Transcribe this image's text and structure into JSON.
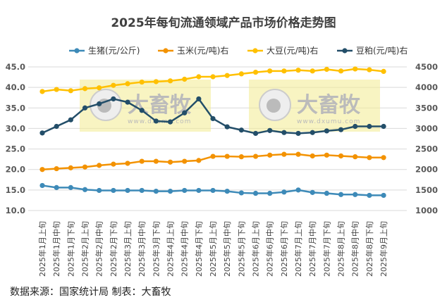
{
  "chart_data": {
    "type": "line",
    "title": "2025年每旬流通领域产品市场价格走势图",
    "categories": [
      "2025年1月上旬",
      "2025年1月中旬",
      "2025年1月下旬",
      "2025年2月上旬",
      "2025年2月中旬",
      "2025年2月下旬",
      "2025年3月上旬",
      "2025年3月中旬",
      "2025年3月下旬",
      "2025年4月上旬",
      "2025年4月中旬",
      "2025年4月下旬",
      "2025年5月上旬",
      "2025年5月中旬",
      "2025年5月下旬",
      "2025年6月上旬",
      "2025年6月中旬",
      "2025年6月下旬",
      "2025年7月上旬",
      "2025年7月中旬",
      "2025年7月下旬",
      "2025年8月上旬",
      "2025年8月中旬",
      "2025年8月下旬",
      "2025年9月上旬"
    ],
    "y_left": {
      "range": [
        10,
        45
      ],
      "ticks": [
        "10.0",
        "15.0",
        "20.0",
        "25.0",
        "30.0",
        "35.0",
        "40.0",
        "45.0"
      ]
    },
    "y_right": {
      "range": [
        1000,
        4500
      ],
      "ticks": [
        "1000",
        "1500",
        "2000",
        "2500",
        "3000",
        "3500",
        "4000",
        "4500"
      ]
    },
    "grid": true,
    "legend_position": "top",
    "series": [
      {
        "name": "生猪(元/公斤)",
        "axis": "left",
        "color": "#3d8ab8",
        "values": [
          16.1,
          15.6,
          15.6,
          15.1,
          14.9,
          14.9,
          14.9,
          14.9,
          14.7,
          14.7,
          14.9,
          14.9,
          14.9,
          14.7,
          14.3,
          14.2,
          14.2,
          14.5,
          15.0,
          14.4,
          14.2,
          13.9,
          13.9,
          13.7,
          13.7
        ]
      },
      {
        "name": "玉米(元/吨)右",
        "axis": "right",
        "color": "#f39200",
        "values": [
          2000,
          2020,
          2040,
          2060,
          2100,
          2130,
          2150,
          2200,
          2200,
          2180,
          2200,
          2220,
          2320,
          2320,
          2310,
          2320,
          2350,
          2370,
          2370,
          2330,
          2350,
          2330,
          2310,
          2290,
          2290
        ]
      },
      {
        "name": "大豆(元/吨)右",
        "axis": "right",
        "color": "#ffc000",
        "values": [
          3900,
          3950,
          3920,
          3970,
          3990,
          4050,
          4090,
          4130,
          4140,
          4160,
          4200,
          4260,
          4260,
          4290,
          4330,
          4370,
          4400,
          4400,
          4420,
          4400,
          4440,
          4400,
          4450,
          4430,
          4390
        ]
      },
      {
        "name": "豆粕(元/吨)右",
        "axis": "right",
        "color": "#234e69",
        "values": [
          2890,
          3050,
          3210,
          3500,
          3600,
          3720,
          3640,
          3440,
          3180,
          3160,
          3380,
          3720,
          3240,
          3040,
          2960,
          2880,
          2950,
          2900,
          2880,
          2900,
          2940,
          2970,
          3050,
          3050,
          3050
        ]
      }
    ]
  },
  "source": "数据来源：国家统计局  制表：大畜牧",
  "watermark": {
    "brand": "大畜牧",
    "url": "www.dxumu.com"
  }
}
